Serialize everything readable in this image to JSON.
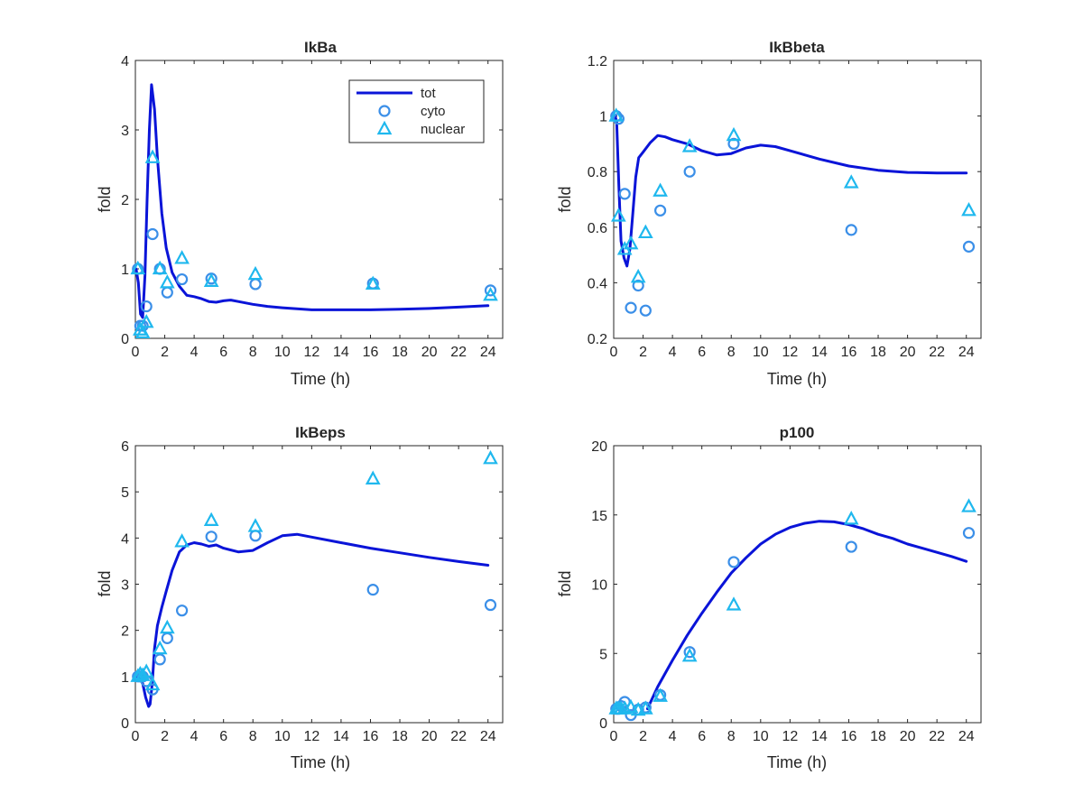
{
  "colors": {
    "tot": "#0a14d8",
    "cyto": "#3b8fe8",
    "nuclear": "#1fb8ee",
    "axis": "#262626"
  },
  "legend": {
    "placement": "top-right of first panel",
    "entries": [
      "tot",
      "cyto",
      "nuclear"
    ]
  },
  "chart_data": [
    {
      "type": "line+scatter",
      "title": "IkBa",
      "xlabel": "Time (h)",
      "ylabel": "fold",
      "xlim": [
        0,
        25
      ],
      "ylim": [
        0,
        4
      ],
      "xticks": [
        "0",
        "2",
        "4",
        "6",
        "8",
        "10",
        "12",
        "14",
        "16",
        "18",
        "20",
        "22",
        "24"
      ],
      "yticks": [
        "0",
        "1",
        "2",
        "3",
        "4"
      ],
      "series": [
        {
          "name": "tot",
          "kind": "line",
          "x": [
            0.05,
            0.2,
            0.35,
            0.5,
            0.65,
            0.8,
            0.95,
            1.1,
            1.3,
            1.5,
            1.8,
            2.1,
            2.5,
            3.0,
            3.5,
            4.0,
            4.5,
            5.0,
            5.5,
            6.0,
            6.5,
            7.0,
            8.0,
            9.0,
            10.0,
            12.0,
            14.0,
            16.0,
            18.0,
            20.0,
            22.0,
            24.0
          ],
          "y": [
            1.0,
            0.8,
            0.35,
            0.3,
            0.9,
            2.0,
            3.0,
            3.65,
            3.3,
            2.6,
            1.8,
            1.3,
            0.95,
            0.75,
            0.62,
            0.6,
            0.57,
            0.53,
            0.52,
            0.54,
            0.55,
            0.53,
            0.49,
            0.46,
            0.44,
            0.41,
            0.41,
            0.41,
            0.42,
            0.43,
            0.45,
            0.47
          ]
        },
        {
          "name": "cyto",
          "kind": "circle",
          "x": [
            0.17,
            0.33,
            0.5,
            0.75,
            1.17,
            1.67,
            2.17,
            3.17,
            5.17,
            8.17,
            16.17,
            24.17
          ],
          "y": [
            1.0,
            0.18,
            0.18,
            0.46,
            1.5,
            1.0,
            0.66,
            0.85,
            0.86,
            0.78,
            0.79,
            0.69
          ]
        },
        {
          "name": "nuclear",
          "kind": "triangle",
          "x": [
            0.17,
            0.33,
            0.5,
            0.75,
            1.17,
            1.67,
            2.17,
            3.17,
            5.17,
            8.17,
            16.17,
            24.17
          ],
          "y": [
            1.0,
            0.12,
            0.08,
            0.23,
            2.6,
            1.0,
            0.8,
            1.15,
            0.82,
            0.92,
            0.78,
            0.62
          ]
        }
      ]
    },
    {
      "type": "line+scatter",
      "title": "IkBbeta",
      "xlabel": "Time (h)",
      "ylabel": "fold",
      "xlim": [
        0,
        25
      ],
      "ylim": [
        0.2,
        1.2
      ],
      "xticks": [
        "0",
        "2",
        "4",
        "6",
        "8",
        "10",
        "12",
        "14",
        "16",
        "18",
        "20",
        "22",
        "24"
      ],
      "yticks": [
        "0.2",
        "0.4",
        "0.6",
        "0.8",
        "1",
        "1.2"
      ],
      "series": [
        {
          "name": "tot",
          "kind": "line",
          "x": [
            0.1,
            0.2,
            0.35,
            0.5,
            0.7,
            0.9,
            1.1,
            1.3,
            1.5,
            1.7,
            2.0,
            2.5,
            3.0,
            3.5,
            4.0,
            5.0,
            6.0,
            7.0,
            8.0,
            9.0,
            10.0,
            11.0,
            12.0,
            14.0,
            16.0,
            18.0,
            20.0,
            22.0,
            24.0
          ],
          "y": [
            1.0,
            0.98,
            0.75,
            0.55,
            0.49,
            0.46,
            0.52,
            0.65,
            0.78,
            0.85,
            0.87,
            0.905,
            0.93,
            0.925,
            0.915,
            0.9,
            0.875,
            0.86,
            0.865,
            0.885,
            0.895,
            0.89,
            0.875,
            0.845,
            0.82,
            0.805,
            0.797,
            0.795,
            0.795
          ]
        },
        {
          "name": "cyto",
          "kind": "circle",
          "x": [
            0.17,
            0.33,
            0.75,
            1.17,
            1.67,
            2.17,
            3.17,
            5.17,
            8.17,
            16.17,
            24.17
          ],
          "y": [
            1.0,
            0.99,
            0.72,
            0.31,
            0.39,
            0.3,
            0.66,
            0.8,
            0.9,
            0.59,
            0.53
          ]
        },
        {
          "name": "nuclear",
          "kind": "triangle",
          "x": [
            0.17,
            0.33,
            0.75,
            1.17,
            1.67,
            2.17,
            3.17,
            5.17,
            8.17,
            16.17,
            24.17
          ],
          "y": [
            1.0,
            0.64,
            0.52,
            0.54,
            0.42,
            0.58,
            0.73,
            0.89,
            0.93,
            0.76,
            0.66
          ]
        }
      ]
    },
    {
      "type": "line+scatter",
      "title": "IkBeps",
      "xlabel": "Time (h)",
      "ylabel": "fold",
      "xlim": [
        0,
        25
      ],
      "ylim": [
        0,
        6
      ],
      "xticks": [
        "0",
        "2",
        "4",
        "6",
        "8",
        "10",
        "12",
        "14",
        "16",
        "18",
        "20",
        "22",
        "24"
      ],
      "yticks": [
        "0",
        "1",
        "2",
        "3",
        "4",
        "5",
        "6"
      ],
      "series": [
        {
          "name": "tot",
          "kind": "line",
          "x": [
            0.1,
            0.3,
            0.5,
            0.7,
            0.9,
            1.0,
            1.15,
            1.3,
            1.5,
            1.8,
            2.1,
            2.5,
            3.0,
            3.5,
            4.0,
            4.5,
            5.0,
            5.5,
            6.0,
            7.0,
            8.0,
            9.0,
            10.0,
            11.0,
            12.0,
            14.0,
            16.0,
            18.0,
            20.0,
            22.0,
            24.0
          ],
          "y": [
            1.0,
            0.95,
            0.85,
            0.55,
            0.35,
            0.4,
            0.85,
            1.6,
            2.1,
            2.5,
            2.85,
            3.3,
            3.7,
            3.85,
            3.9,
            3.87,
            3.82,
            3.85,
            3.78,
            3.7,
            3.73,
            3.9,
            4.05,
            4.08,
            4.02,
            3.9,
            3.78,
            3.68,
            3.58,
            3.49,
            3.41
          ]
        },
        {
          "name": "cyto",
          "kind": "circle",
          "x": [
            0.17,
            0.33,
            0.5,
            0.75,
            1.17,
            1.67,
            2.17,
            3.17,
            5.17,
            8.17,
            16.17,
            24.17
          ],
          "y": [
            1.0,
            1.0,
            1.0,
            0.9,
            0.72,
            1.37,
            1.83,
            2.43,
            4.03,
            4.05,
            2.88,
            2.55
          ]
        },
        {
          "name": "nuclear",
          "kind": "triangle",
          "x": [
            0.17,
            0.33,
            0.5,
            0.75,
            1.17,
            1.67,
            2.17,
            3.17,
            5.17,
            8.17,
            16.17,
            24.17
          ],
          "y": [
            1.0,
            1.05,
            1.02,
            1.1,
            0.82,
            1.6,
            2.05,
            3.92,
            4.38,
            4.25,
            5.28,
            5.72
          ]
        }
      ]
    },
    {
      "type": "line+scatter",
      "title": "p100",
      "xlabel": "Time (h)",
      "ylabel": "fold",
      "xlim": [
        0,
        25
      ],
      "ylim": [
        0,
        20
      ],
      "xticks": [
        "0",
        "2",
        "4",
        "6",
        "8",
        "10",
        "12",
        "14",
        "16",
        "18",
        "20",
        "22",
        "24"
      ],
      "yticks": [
        "0",
        "5",
        "10",
        "15",
        "20"
      ],
      "series": [
        {
          "name": "tot",
          "kind": "line",
          "x": [
            2.3,
            3.0,
            4.0,
            5.0,
            6.0,
            7.0,
            8.0,
            9.0,
            10.0,
            11.0,
            12.0,
            13.0,
            14.0,
            15.0,
            16.0,
            17.0,
            18.0,
            19.0,
            20.0,
            21.0,
            22.0,
            23.0,
            24.0
          ],
          "y": [
            1.0,
            2.6,
            4.5,
            6.3,
            7.9,
            9.4,
            10.8,
            11.9,
            12.9,
            13.6,
            14.1,
            14.4,
            14.55,
            14.5,
            14.3,
            14.0,
            13.6,
            13.3,
            12.9,
            12.6,
            12.3,
            12.0,
            11.65
          ]
        },
        {
          "name": "cyto",
          "kind": "circle",
          "x": [
            0.17,
            0.33,
            0.5,
            0.75,
            1.17,
            1.67,
            2.17,
            3.17,
            5.17,
            8.17,
            16.17,
            24.17
          ],
          "y": [
            1.0,
            1.0,
            1.2,
            1.5,
            0.55,
            0.95,
            1.1,
            2.0,
            5.1,
            11.6,
            12.7,
            13.7
          ]
        },
        {
          "name": "nuclear",
          "kind": "triangle",
          "x": [
            0.17,
            0.33,
            0.5,
            0.75,
            1.17,
            1.67,
            2.17,
            3.17,
            5.17,
            8.17,
            16.17,
            24.17
          ],
          "y": [
            1.0,
            1.0,
            1.0,
            1.0,
            1.1,
            0.9,
            1.0,
            1.9,
            4.8,
            8.5,
            14.7,
            15.6
          ]
        }
      ]
    }
  ]
}
